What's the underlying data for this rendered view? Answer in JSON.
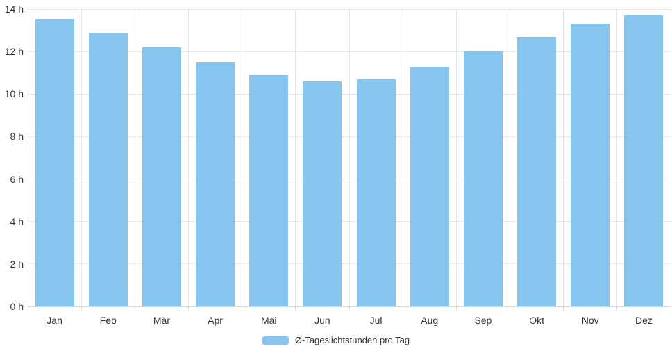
{
  "chart_data": {
    "type": "bar",
    "title": "",
    "categories": [
      "Jan",
      "Feb",
      "Mär",
      "Apr",
      "Mai",
      "Jun",
      "Jul",
      "Aug",
      "Sep",
      "Okt",
      "Nov",
      "Dez"
    ],
    "series": [
      {
        "name": "Ø-Tageslichtstunden pro Tag",
        "values": [
          13.5,
          12.9,
          12.2,
          11.5,
          10.9,
          10.6,
          10.7,
          11.3,
          12.0,
          12.7,
          13.3,
          13.7
        ]
      }
    ],
    "xlabel": "",
    "ylabel": "",
    "ylim": [
      0,
      14
    ],
    "y_ticks": [
      0,
      2,
      4,
      6,
      8,
      10,
      12,
      14
    ],
    "y_tick_labels": [
      "0 h",
      "2 h",
      "4 h",
      "6 h",
      "8 h",
      "10 h",
      "12 h",
      "14 h"
    ],
    "grid": true,
    "legend_position": "bottom-center",
    "colors": {
      "bar": "#86C6EE",
      "grid": "#e6e6e6",
      "axis": "#ccd6eb",
      "text": "#333333"
    }
  }
}
